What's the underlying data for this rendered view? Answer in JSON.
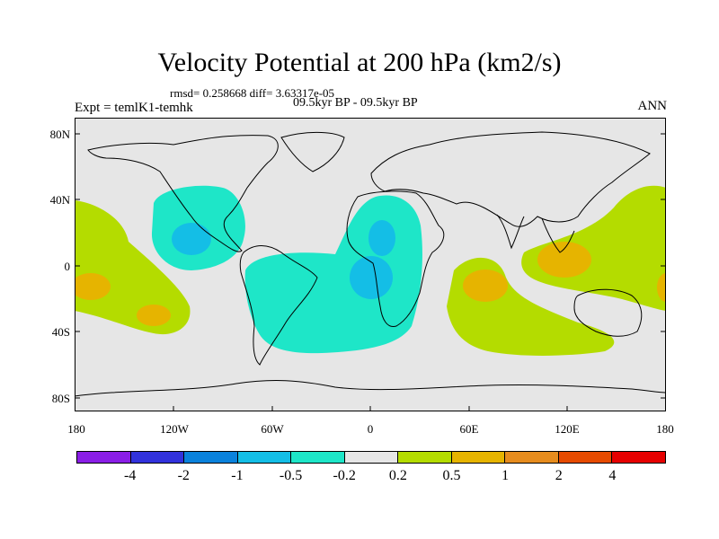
{
  "title": "Velocity Potential at 200 hPa (km2/s)",
  "stats_line": "rmsd= 0.258668 diff= 3.63317e-05",
  "expt_label": "Expt = temlK1-temhk",
  "period_label": "09.5kyr BP - 09.5kyr BP",
  "season_label": "ANN",
  "lat_labels": [
    "80N",
    "40N",
    "0",
    "40S",
    "80S"
  ],
  "lon_labels": [
    "180",
    "120W",
    "60W",
    "0",
    "60E",
    "120E",
    "180"
  ],
  "colorbar": {
    "colors": [
      "#8a1ee6",
      "#3232dc",
      "#0a82dc",
      "#14bee6",
      "#1ee6c8",
      "#e6e6e6",
      "#b4dc00",
      "#e6b400",
      "#e68c1e",
      "#e64b00",
      "#e60000"
    ],
    "labels": [
      "-4",
      "-2",
      "-1",
      "-0.5",
      "-0.2",
      "0.2",
      "0.5",
      "1",
      "2",
      "4"
    ]
  },
  "field_colors": {
    "background": "#e6e6e6",
    "cyan": "#1ee6c8",
    "blue": "#14bee6",
    "yellow": "#b4dc00",
    "orange": "#e6b400"
  }
}
